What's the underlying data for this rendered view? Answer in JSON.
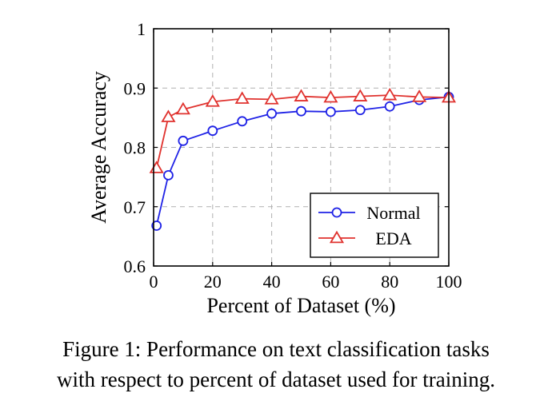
{
  "chart_data": {
    "type": "line",
    "xlabel": "Percent of Dataset (%)",
    "ylabel": "Average Accuracy",
    "xlim": [
      0,
      100
    ],
    "ylim": [
      0.6,
      1
    ],
    "xticks": [
      0,
      20,
      40,
      60,
      80,
      100
    ],
    "yticks": [
      0.6,
      0.7,
      0.8,
      0.9,
      1
    ],
    "ytick_labels": [
      "0.6",
      "0.7",
      "0.8",
      "0.9",
      "1"
    ],
    "grid": true,
    "legend_position": "bottom-right",
    "series": [
      {
        "name": "Normal",
        "color": "#1f22e6",
        "marker": "circle",
        "x": [
          1,
          5,
          10,
          20,
          30,
          40,
          50,
          60,
          70,
          80,
          90,
          100
        ],
        "y": [
          0.668,
          0.753,
          0.811,
          0.828,
          0.844,
          0.857,
          0.861,
          0.86,
          0.863,
          0.869,
          0.88,
          0.885
        ]
      },
      {
        "name": "EDA",
        "color": "#e0322e",
        "marker": "triangle",
        "x": [
          1,
          5,
          10,
          20,
          30,
          40,
          50,
          60,
          70,
          80,
          90,
          100
        ],
        "y": [
          0.765,
          0.851,
          0.864,
          0.877,
          0.882,
          0.881,
          0.886,
          0.884,
          0.886,
          0.888,
          0.885,
          0.884
        ]
      }
    ]
  },
  "caption": {
    "line1": "Figure 1: Performance on text classification tasks",
    "line2": "with respect to percent of dataset used for training."
  }
}
